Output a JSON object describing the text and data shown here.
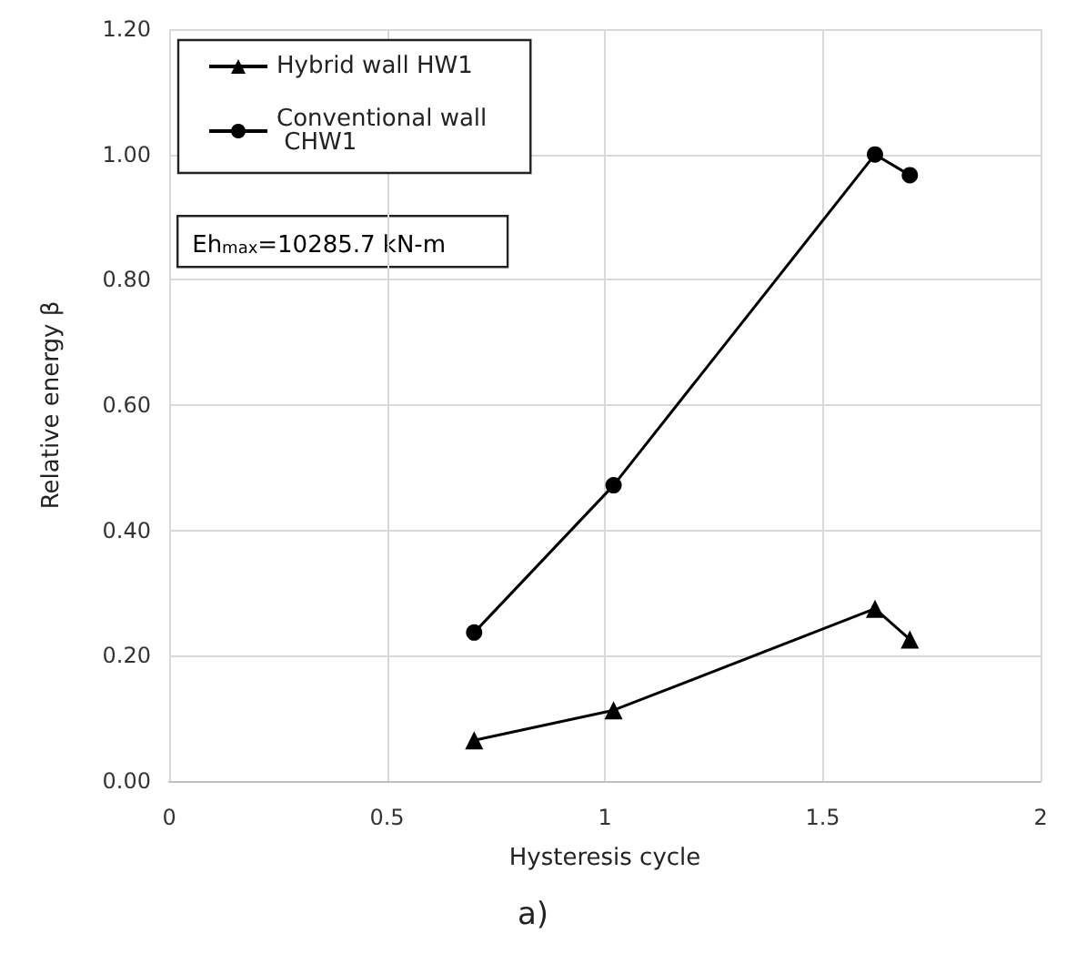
{
  "chart_data": {
    "type": "line",
    "xlabel": "Hysteresis cycle",
    "ylabel": "Relative energy β",
    "annotations": [
      "Eh$_{max}$=10285.7 kN-m",
      "a)"
    ],
    "series": [
      {
        "name": "Hybrid wall HW1",
        "color": "#000000",
        "marker": "triangle",
        "x": [
          0.7,
          1.02,
          1.62,
          1.7
        ],
        "values": [
          0.065,
          0.113,
          0.275,
          0.226
        ]
      },
      {
        "name": "Conventional wall CHW1",
        "color": "#000000",
        "marker": "circle",
        "x": [
          0.7,
          1.02,
          1.62,
          1.7
        ],
        "values": [
          0.237,
          0.472,
          1.0,
          0.967
        ]
      }
    ],
    "xlim": [
      0,
      2
    ],
    "xticks": [
      0,
      0.5,
      1,
      1.5,
      2
    ],
    "ylim": [
      0,
      1.2
    ],
    "yticks": [
      {
        "value": 0,
        "label": "0.00"
      },
      {
        "value": 0.2,
        "label": "0.20"
      },
      {
        "value": 0.4,
        "label": "0.40"
      },
      {
        "value": 0.6,
        "label": "0.60"
      },
      {
        "value": 0.8,
        "label": "0.80"
      },
      {
        "value": 1.0,
        "label": "1.00"
      },
      {
        "value": 1.2,
        "label": "1.20"
      }
    ],
    "grid": true,
    "legend": "top left",
    "line_style": "solid"
  }
}
